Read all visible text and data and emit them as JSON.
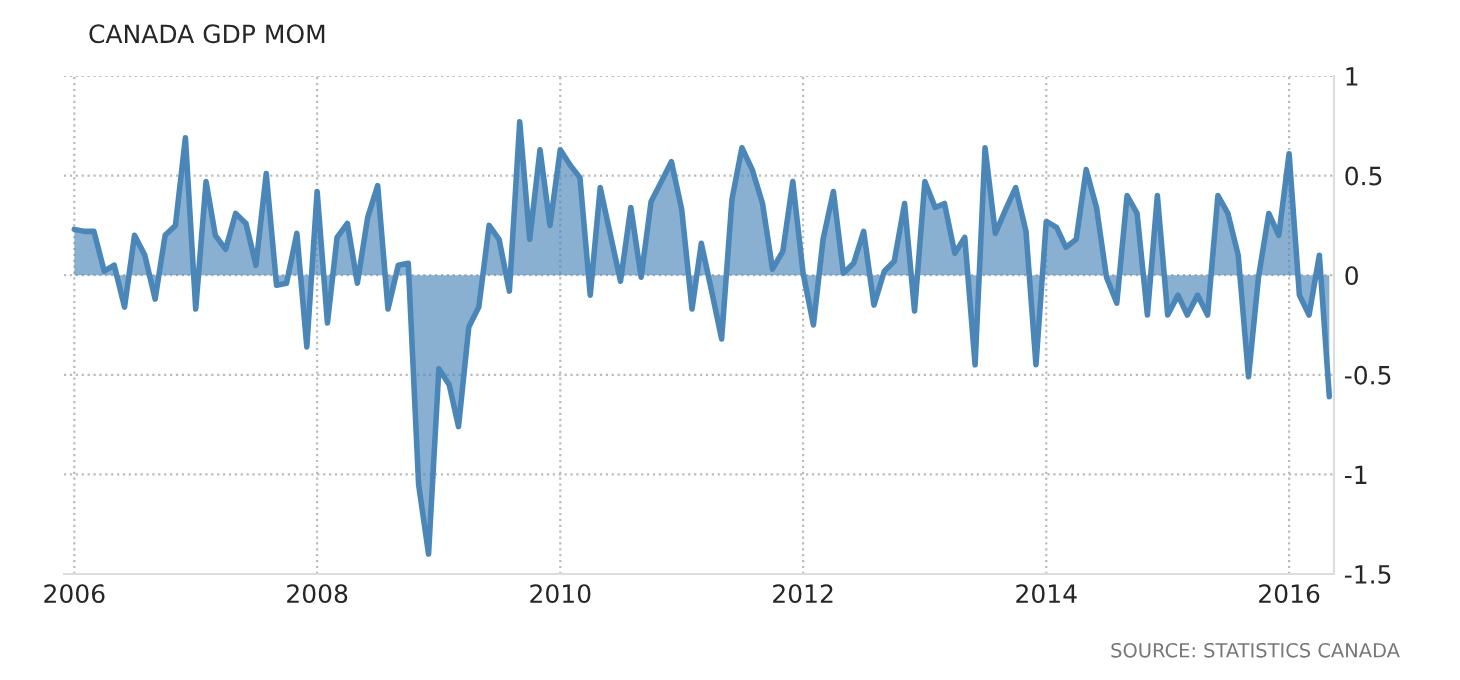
{
  "chart_data": {
    "type": "area",
    "title": "CANADA GDP MOM",
    "annotations": [
      "SOURCE: STATISTICS CANADA"
    ],
    "x": [
      "2006-01",
      "2006-02",
      "2006-03",
      "2006-04",
      "2006-05",
      "2006-06",
      "2006-07",
      "2006-08",
      "2006-09",
      "2006-10",
      "2006-11",
      "2006-12",
      "2007-01",
      "2007-02",
      "2007-03",
      "2007-04",
      "2007-05",
      "2007-06",
      "2007-07",
      "2007-08",
      "2007-09",
      "2007-10",
      "2007-11",
      "2007-12",
      "2008-01",
      "2008-02",
      "2008-03",
      "2008-04",
      "2008-05",
      "2008-06",
      "2008-07",
      "2008-08",
      "2008-09",
      "2008-10",
      "2008-11",
      "2008-12",
      "2009-01",
      "2009-02",
      "2009-03",
      "2009-04",
      "2009-05",
      "2009-06",
      "2009-07",
      "2009-08",
      "2009-09",
      "2009-10",
      "2009-11",
      "2009-12",
      "2010-01",
      "2010-02",
      "2010-03",
      "2010-04",
      "2010-05",
      "2010-06",
      "2010-07",
      "2010-08",
      "2010-09",
      "2010-10",
      "2010-11",
      "2010-12",
      "2011-01",
      "2011-02",
      "2011-03",
      "2011-04",
      "2011-05",
      "2011-06",
      "2011-07",
      "2011-08",
      "2011-09",
      "2011-10",
      "2011-11",
      "2011-12",
      "2012-01",
      "2012-02",
      "2012-03",
      "2012-04",
      "2012-05",
      "2012-06",
      "2012-07",
      "2012-08",
      "2012-09",
      "2012-10",
      "2012-11",
      "2012-12",
      "2013-01",
      "2013-02",
      "2013-03",
      "2013-04",
      "2013-05",
      "2013-06",
      "2013-07",
      "2013-08",
      "2013-09",
      "2013-10",
      "2013-11",
      "2013-12",
      "2014-01",
      "2014-02",
      "2014-03",
      "2014-04",
      "2014-05",
      "2014-06",
      "2014-07",
      "2014-08",
      "2014-09",
      "2014-10",
      "2014-11",
      "2014-12",
      "2015-01",
      "2015-02",
      "2015-03",
      "2015-04",
      "2015-05",
      "2015-06",
      "2015-07",
      "2015-08",
      "2015-09",
      "2015-10",
      "2015-11",
      "2015-12",
      "2016-01",
      "2016-02",
      "2016-03",
      "2016-04",
      "2016-05"
    ],
    "series": [
      {
        "color": "#4a86b8",
        "values": [
          0.23,
          0.22,
          0.22,
          0.02,
          0.05,
          -0.16,
          0.2,
          0.1,
          -0.12,
          0.2,
          0.25,
          0.69,
          -0.17,
          0.47,
          0.2,
          0.13,
          0.31,
          0.26,
          0.05,
          0.51,
          -0.05,
          -0.04,
          0.21,
          -0.36,
          0.42,
          -0.24,
          0.19,
          0.26,
          -0.04,
          0.29,
          0.45,
          -0.17,
          0.05,
          0.06,
          -1.05,
          -1.4,
          -0.47,
          -0.55,
          -0.76,
          -0.26,
          -0.16,
          0.25,
          0.18,
          -0.08,
          0.77,
          0.18,
          0.63,
          0.25,
          0.63,
          0.55,
          0.49,
          -0.1,
          0.44,
          0.2,
          -0.03,
          0.34,
          -0.01,
          0.37,
          0.47,
          0.57,
          0.33,
          -0.17,
          0.16,
          -0.08,
          -0.32,
          0.38,
          0.64,
          0.53,
          0.36,
          0.03,
          0.12,
          0.47,
          0.01,
          -0.25,
          0.18,
          0.42,
          0.01,
          0.06,
          0.22,
          -0.15,
          0.02,
          0.07,
          0.36,
          -0.18,
          0.47,
          0.34,
          0.36,
          0.11,
          0.19,
          -0.45,
          0.64,
          0.21,
          0.33,
          0.44,
          0.22,
          -0.45,
          0.27,
          0.24,
          0.14,
          0.18,
          0.53,
          0.34,
          -0.01,
          -0.14,
          0.4,
          0.31,
          -0.2,
          0.4,
          -0.2,
          -0.1,
          -0.2,
          -0.1,
          -0.2,
          0.4,
          0.31,
          0.1,
          -0.51,
          -0.01,
          0.31,
          0.2,
          0.61,
          -0.1,
          -0.2,
          0.1,
          -0.61
        ]
      }
    ],
    "xlim": [
      "2005-12-01",
      "2016-05-15"
    ],
    "xticks": [
      "2006",
      "2008",
      "2010",
      "2012",
      "2014",
      "2016"
    ],
    "ylim": [
      -1.5,
      1
    ],
    "yticks": [
      -1.5,
      -1,
      -0.5,
      0,
      0.5,
      1
    ],
    "grid": true,
    "legend": false,
    "marker": "none",
    "line_style": "solid"
  }
}
